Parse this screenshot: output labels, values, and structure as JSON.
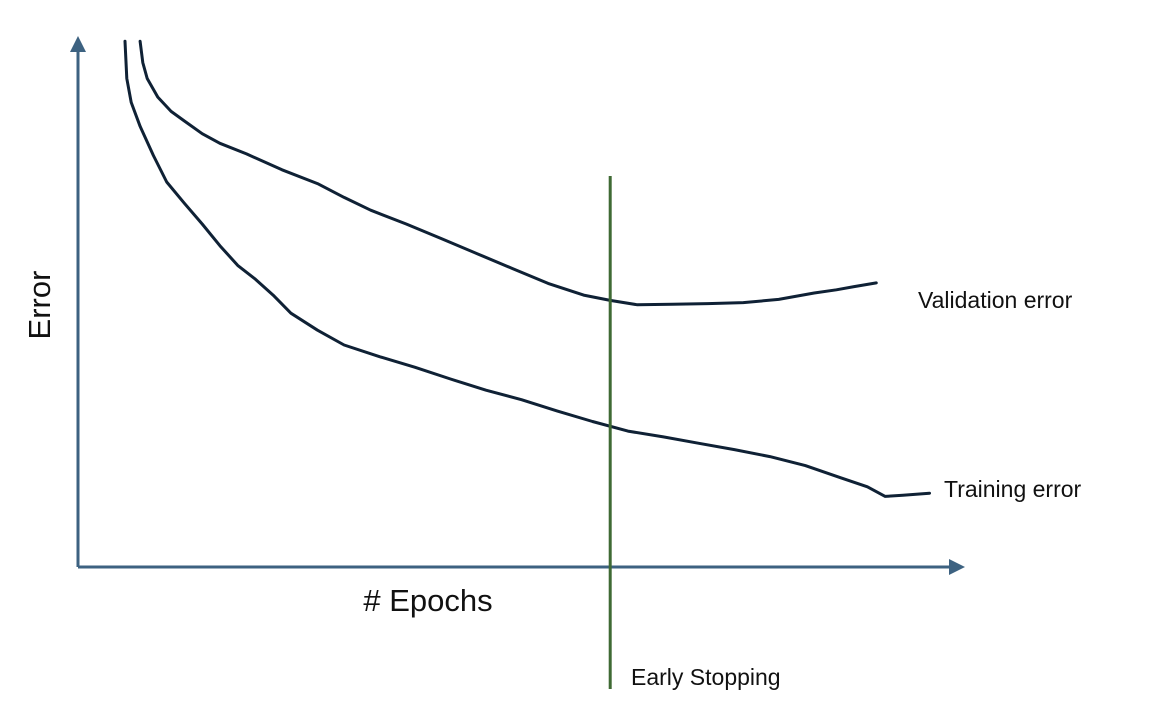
{
  "chart_data": {
    "type": "line",
    "title": "",
    "xlabel": "# Epochs",
    "ylabel": "Error",
    "xlim": [
      0,
      100
    ],
    "ylim": [
      0,
      100
    ],
    "grid": false,
    "legend": "none",
    "series": [
      {
        "name": "Validation error",
        "color": "#0f2135",
        "x": [
          7,
          7.3,
          7.8,
          9,
          10.5,
          12,
          14,
          16,
          19,
          23,
          27,
          30,
          33,
          37,
          41,
          45,
          49,
          53,
          57,
          60,
          63,
          67,
          71,
          75,
          79,
          83,
          85.5,
          87.5,
          90
        ],
        "y": [
          99,
          95,
          92,
          88.5,
          85.8,
          84,
          81.6,
          79.8,
          77.8,
          74.8,
          72.2,
          69.6,
          67.2,
          64.6,
          61.8,
          59,
          56.2,
          53.4,
          51.2,
          50.2,
          49.4,
          49.5,
          49.6,
          49.8,
          50.4,
          51.6,
          52.2,
          52.8,
          53.5
        ]
      },
      {
        "name": "Training error",
        "color": "#0f2135",
        "x": [
          5.3,
          5.5,
          6,
          7,
          8.5,
          10,
          12,
          14,
          16,
          18,
          20,
          22,
          24,
          27,
          30,
          34,
          38,
          42,
          46,
          50,
          54,
          58,
          62,
          66,
          70,
          74,
          78,
          82,
          86,
          89,
          91,
          93,
          96
        ],
        "y": [
          99,
          92,
          87.5,
          83,
          77.5,
          72.5,
          68.5,
          64.6,
          60.5,
          56.8,
          54.2,
          51.2,
          47.8,
          44.6,
          41.8,
          39.6,
          37.6,
          35.4,
          33.3,
          31.5,
          29.4,
          27.4,
          25.6,
          24.5,
          23.3,
          22.1,
          20.8,
          19.1,
          16.8,
          15.1,
          13.3,
          13.5,
          13.9
        ]
      }
    ],
    "annotations": [
      {
        "kind": "vline",
        "x": 60,
        "label": "Early Stopping",
        "color": "#3f6a34"
      }
    ]
  }
}
